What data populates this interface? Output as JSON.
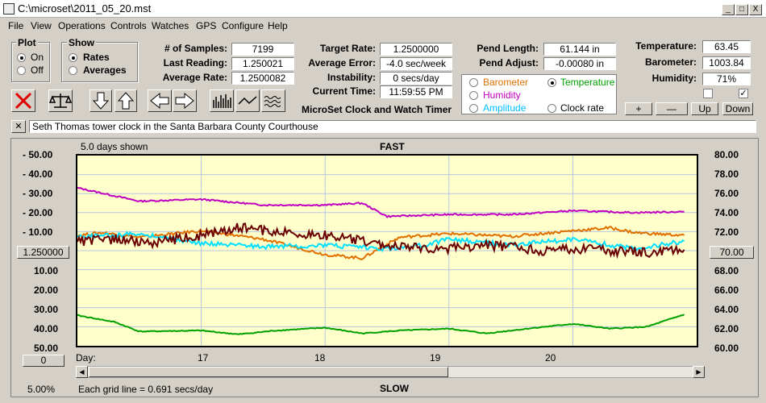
{
  "window": {
    "title": "C:\\microset\\2011_05_20.mst",
    "controls": [
      "_",
      "□",
      "X"
    ]
  },
  "menu": [
    "File",
    "View",
    "Operations",
    "Controls",
    "Watches",
    "GPS",
    "Configure",
    "Help"
  ],
  "plot_group": {
    "title": "Plot",
    "on": "On",
    "off": "Off",
    "selected": "On"
  },
  "show_group": {
    "title": "Show",
    "rates": "Rates",
    "averages": "Averages",
    "selected": "Rates"
  },
  "stats": {
    "samples_label": "# of Samples:",
    "samples": "7199",
    "last_reading_label": "Last Reading:",
    "last_reading": "1.250021",
    "average_rate_label": "Average Rate:",
    "average_rate": "1.2500082",
    "target_rate_label": "Target Rate:",
    "target_rate": "1.2500000",
    "average_error_label": "Average Error:",
    "average_error": "-4.0 sec/week",
    "instability_label": "Instability:",
    "instability": "0 secs/day",
    "current_time_label": "Current Time:",
    "current_time": "11:59:55 PM",
    "app_name": "MicroSet Clock and Watch Timer",
    "pend_length_label": "Pend Length:",
    "pend_length": "61.144 in",
    "pend_adjust_label": "Pend Adjust:",
    "pend_adjust": "-0.00080 in",
    "temperature_label": "Temperature:",
    "temperature": "63.45",
    "barometer_label": "Barometer:",
    "barometer": "1003.84",
    "humidity_label": "Humidity:",
    "humidity": "71%"
  },
  "sensor_options": {
    "barometer": "Barometer",
    "temperature": "Temperature",
    "humidity": "Humidity",
    "amplitude": "Amplitude",
    "clock_rate": "Clock rate",
    "selected": "Temperature",
    "colors": {
      "barometer": "#e07000",
      "temperature": "#00a000",
      "humidity": "#c000c0",
      "amplitude": "#00c0ff",
      "clock_rate": "#000000"
    }
  },
  "adjust_buttons": {
    "plus": "+",
    "minus": "—",
    "up": "Up",
    "down": "Down"
  },
  "description": "Seth Thomas tower clock in the Santa Barbara County Courthouse",
  "graph": {
    "days_shown": "5.0 days shown",
    "fast": "FAST",
    "slow": "SLOW",
    "center_value": "1.250000",
    "right_center": "70.00",
    "zero_button": "0",
    "zoom": "5.00%",
    "grid_note": "Each grid line = 0.691 secs/day",
    "day_label": "Day:"
  },
  "chart_data": {
    "type": "line",
    "x_label": "Day:",
    "x_ticks": [
      "17",
      "18",
      "19",
      "20"
    ],
    "left_ticks": [
      "- 50.00",
      "- 40.00",
      "- 30.00",
      "- 20.00",
      "- 10.00",
      "1.250000",
      "10.00",
      "20.00",
      "30.00",
      "40.00",
      "50.00"
    ],
    "right_ticks": [
      "80.00",
      "78.00",
      "76.00",
      "74.00",
      "72.00",
      "70.00",
      "68.00",
      "66.00",
      "64.00",
      "62.00",
      "60.00"
    ],
    "x_range": [
      16.0,
      21.0
    ],
    "y_range_left": [
      -50,
      50
    ],
    "y_range_right": [
      60,
      80
    ],
    "series": [
      {
        "name": "Humidity",
        "color": "#c000c0",
        "x": [
          16.0,
          16.5,
          17.0,
          17.5,
          18.0,
          18.3,
          18.5,
          19.0,
          19.5,
          20.0,
          20.5,
          20.9
        ],
        "y": [
          76.6,
          75.2,
          75.4,
          74.8,
          74.8,
          75.0,
          73.6,
          73.8,
          73.8,
          74.2,
          74.0,
          74.1
        ]
      },
      {
        "name": "Barometer",
        "color": "#e07000",
        "x": [
          16.0,
          16.2,
          16.5,
          17.0,
          17.5,
          18.0,
          18.3,
          18.6,
          19.0,
          19.5,
          20.0,
          20.3,
          20.5,
          20.9
        ],
        "y": [
          71.6,
          71.9,
          71.4,
          72.1,
          71.2,
          69.6,
          69.2,
          71.4,
          71.8,
          71.5,
          72.1,
          72.4,
          71.9,
          71.6
        ]
      },
      {
        "name": "Amplitude",
        "color": "#00e0ff",
        "x": [
          16.0,
          16.5,
          17.0,
          17.5,
          18.0,
          18.5,
          18.8,
          19.0,
          19.5,
          20.0,
          20.5,
          20.9
        ],
        "y": [
          -7.0,
          -9.0,
          -4.0,
          -2.0,
          -3.0,
          -1.0,
          -3.0,
          -6.0,
          -3.0,
          -6.0,
          -1.0,
          -5.0
        ]
      },
      {
        "name": "Clock rate",
        "color": "#6a0000",
        "x": [
          16.0,
          16.3,
          16.6,
          17.0,
          17.3,
          17.6,
          18.0,
          18.3,
          18.6,
          19.0,
          19.3,
          19.6,
          19.8,
          20.0,
          20.3,
          20.6,
          20.9
        ],
        "y": [
          -5.0,
          -6.0,
          -4.0,
          -8.0,
          -12.0,
          -10.0,
          -8.0,
          -5.0,
          -2.0,
          -1.0,
          -3.0,
          -1.5,
          0.5,
          -1.0,
          0.0,
          1.0,
          -0.5
        ]
      },
      {
        "name": "Temperature",
        "color": "#00a000",
        "x": [
          16.0,
          16.3,
          16.5,
          17.0,
          17.3,
          17.6,
          18.0,
          18.3,
          18.6,
          19.0,
          19.3,
          19.7,
          20.0,
          20.3,
          20.6,
          20.9
        ],
        "y": [
          63.2,
          62.5,
          61.5,
          61.6,
          61.2,
          61.6,
          61.9,
          61.3,
          61.6,
          61.8,
          61.3,
          61.9,
          62.3,
          61.8,
          62.0,
          63.3
        ]
      }
    ]
  }
}
